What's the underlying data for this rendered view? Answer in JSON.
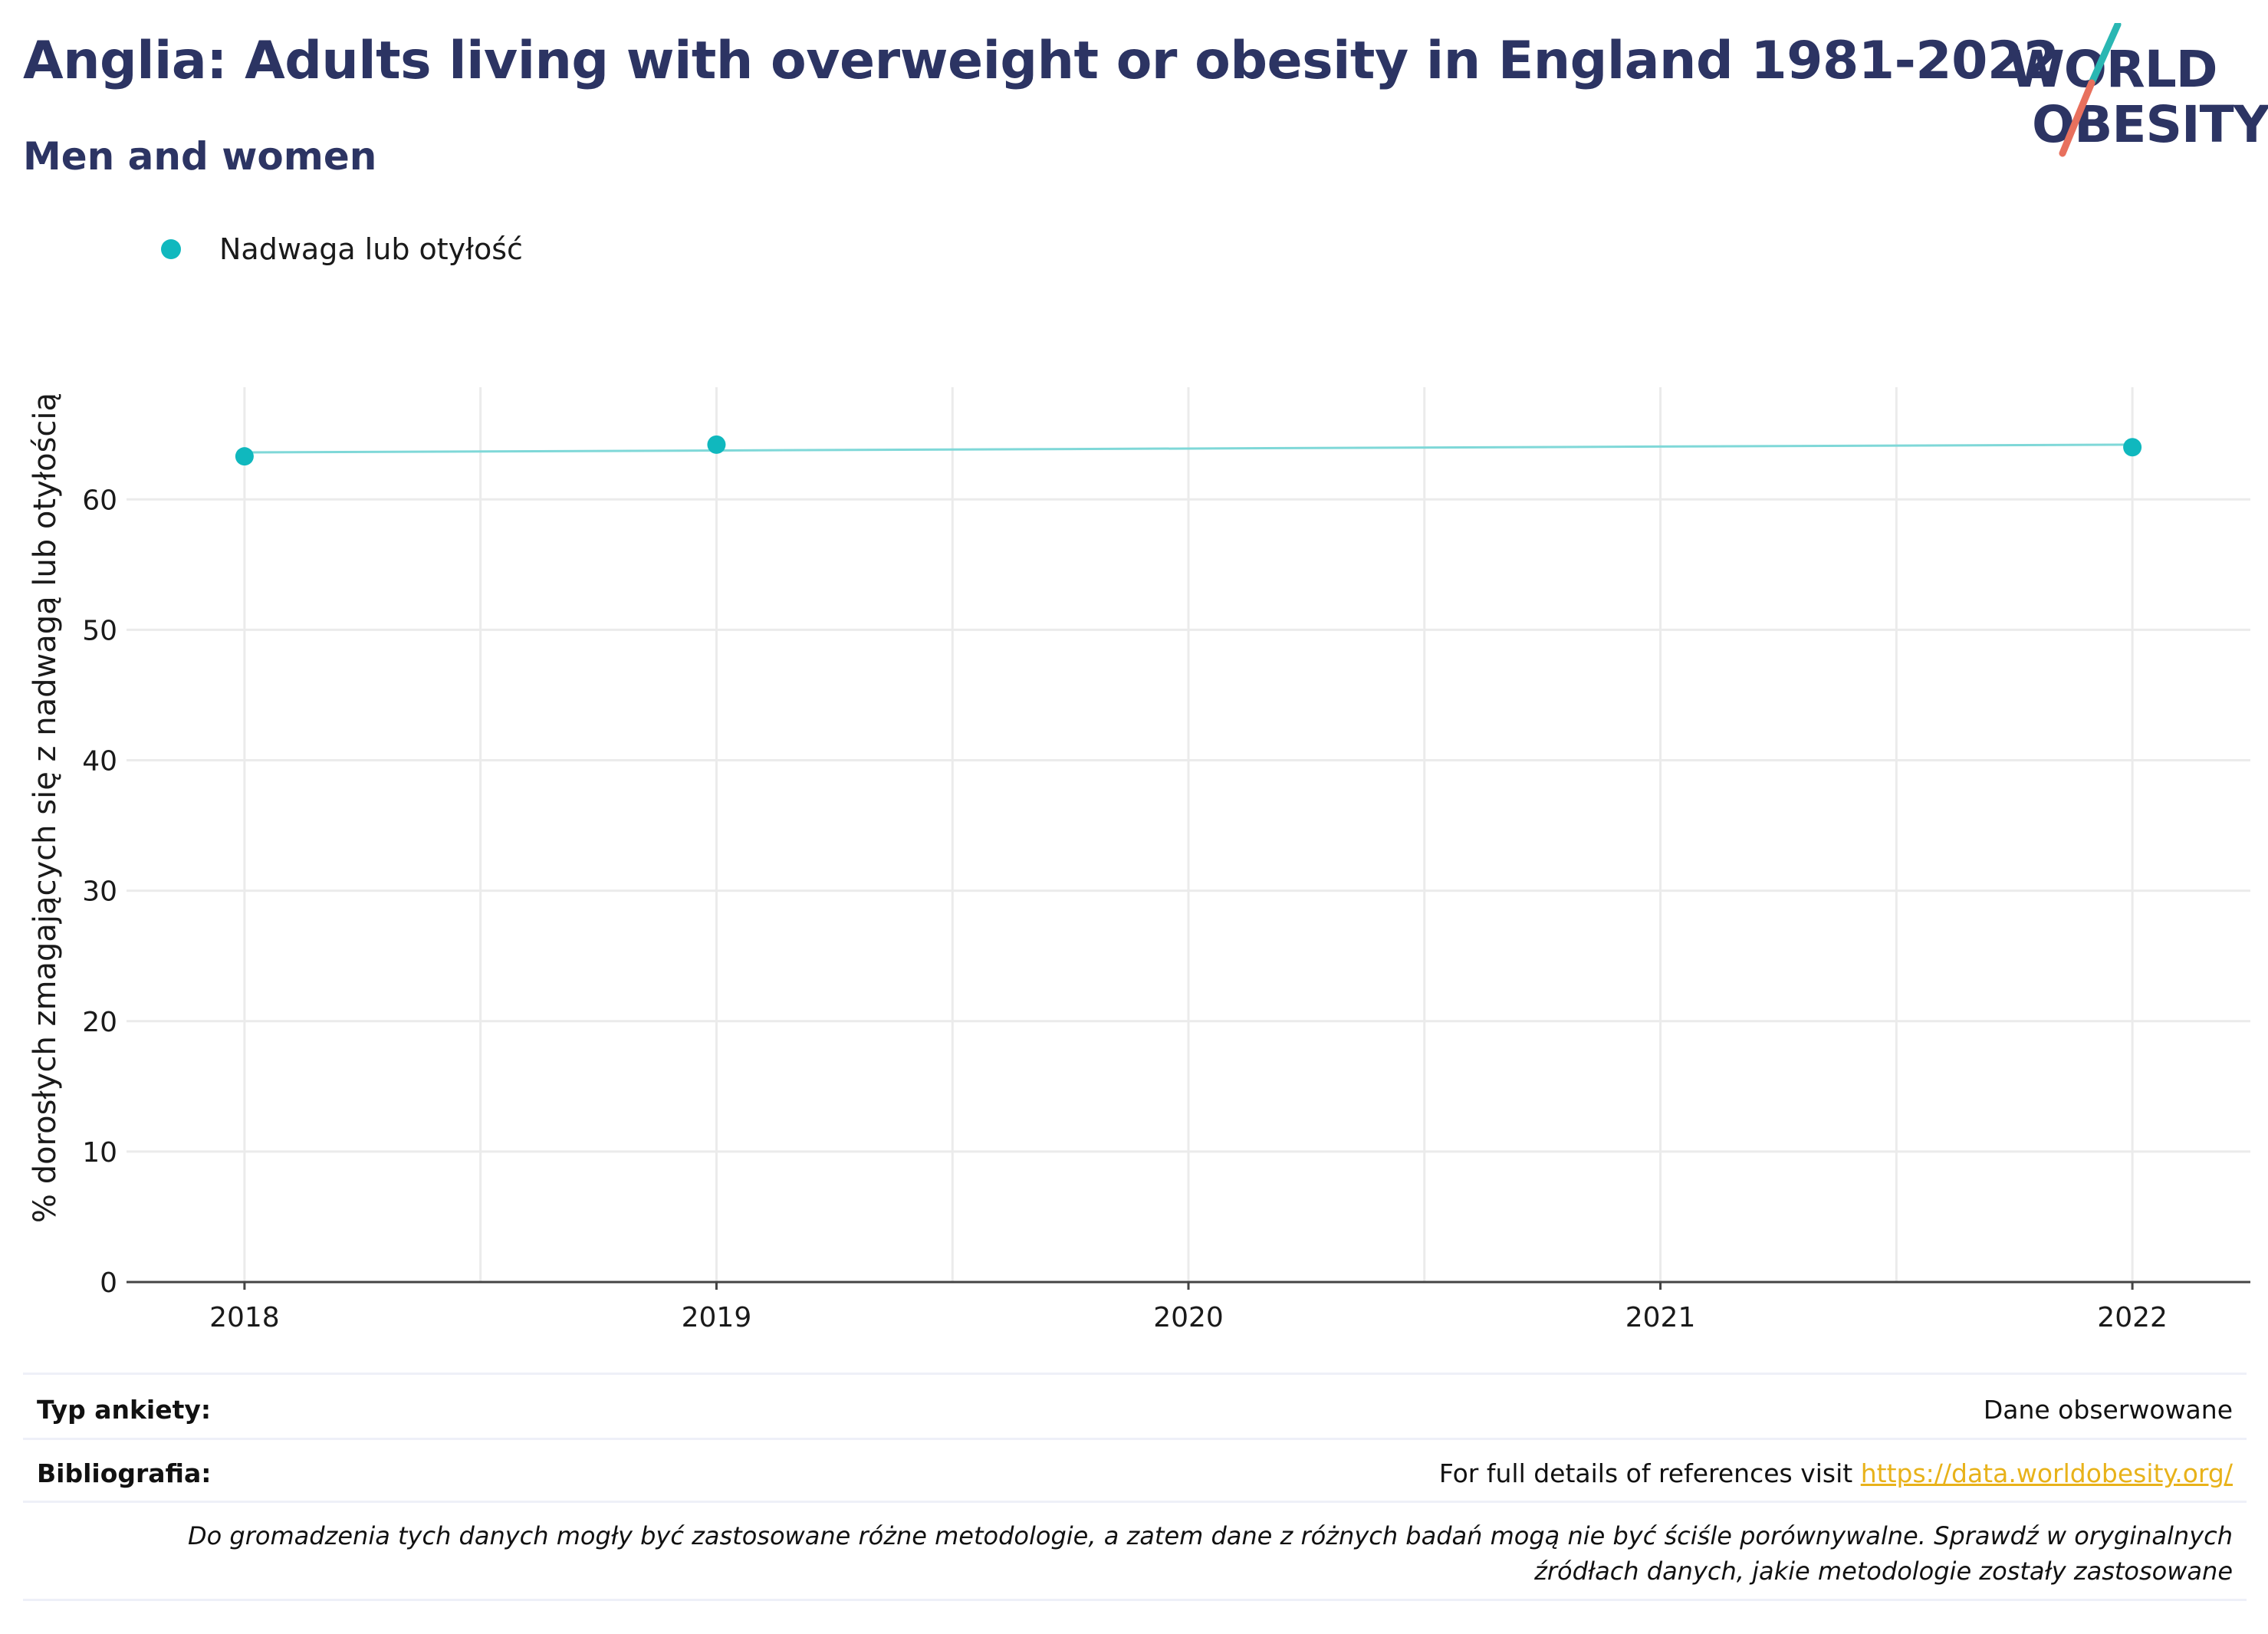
{
  "header": {
    "title": "Anglia: Adults living with overweight or obesity in England 1981-2022",
    "subtitle": "Men and women"
  },
  "logo": {
    "line1": "WORLD",
    "line2": "OBESITY",
    "slash_top_color": "#2ab7b3",
    "slash_bottom_color": "#e8705d"
  },
  "legend": {
    "label": "Nadwaga lub otyłość",
    "color": "#10b8be"
  },
  "chart_data": {
    "type": "line",
    "x": [
      2018,
      2019,
      2022
    ],
    "series": [
      {
        "name": "Nadwaga lub otyłość",
        "values": [
          63.3,
          64.2,
          64.0
        ]
      }
    ],
    "trend_line": {
      "x": [
        2018,
        2022
      ],
      "y": [
        63.6,
        64.2
      ],
      "color": "#7fd8d8"
    },
    "xticks": [
      "2018",
      "2019",
      "2020",
      "2021",
      "2022"
    ],
    "yticks": [
      "0",
      "10",
      "20",
      "30",
      "40",
      "50",
      "60"
    ],
    "ylabel": "% dorosłych zmagających się z nadwagą lub otyłością",
    "ylim": [
      0,
      68.6
    ],
    "xlim": [
      2017.75,
      2022.25
    ],
    "grid": true,
    "point_color": "#10b8be"
  },
  "footer": {
    "survey_label": "Typ ankiety:",
    "survey_value": "Dane obserwowane",
    "bib_label": "Bibliografia:",
    "bib_text": "For full details of references visit",
    "bib_link": "https://data.worldobesity.org/",
    "note": "Do gromadzenia tych danych mogły być zastosowane różne metodologie, a zatem dane z różnych badań mogą nie być ściśle porównywalne. Sprawdź w oryginalnych źródłach danych, jakie metodologie zostały zastosowane"
  }
}
